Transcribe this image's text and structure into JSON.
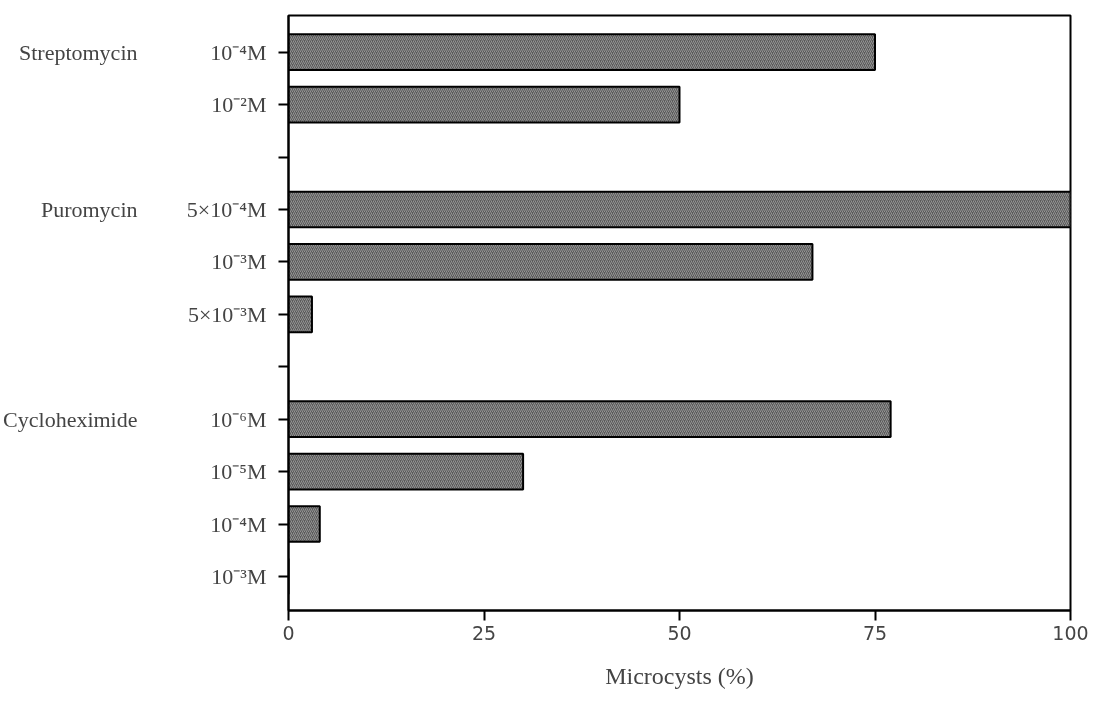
{
  "chart_data": {
    "type": "bar",
    "orientation": "horizontal",
    "xlabel": "Microcysts (%)",
    "categories": [
      "10⁻⁴M",
      "10⁻²M",
      null,
      "5×10⁻⁴M",
      "10⁻³M",
      "5×10⁻³M",
      null,
      "10⁻⁶M",
      "10⁻⁵M",
      "10⁻⁴M",
      "10⁻³M"
    ],
    "values": [
      75,
      50,
      null,
      100,
      67,
      3,
      null,
      77,
      30,
      4,
      0
    ],
    "color": "#5a5a5a",
    "xlim": [
      0,
      100
    ],
    "xticks": [
      0,
      25,
      50,
      75,
      100
    ],
    "grid": false,
    "annotations": [
      "Streptomycin",
      "Puromycin",
      "Cycloheximide"
    ]
  }
}
